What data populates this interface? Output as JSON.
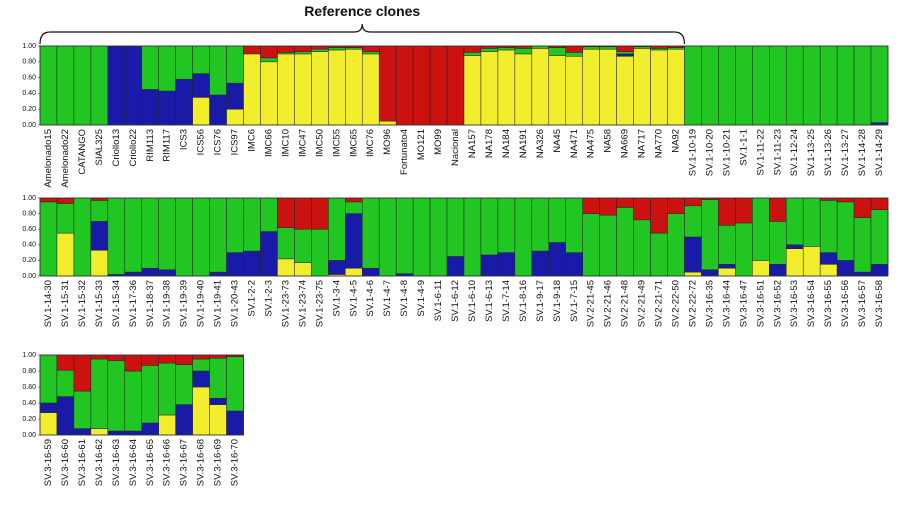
{
  "chart_data": [
    {
      "type": "stacked_bar",
      "annotation": "Reference clones",
      "annotation_span": [
        0,
        37
      ],
      "categories": [
        "Amelonado15",
        "Amelonado22",
        "CATANGO",
        "SIAL325",
        "Criollo13",
        "Criollo22",
        "RIM113",
        "RIM117",
        "ICS3",
        "ICS56",
        "ICS76",
        "ICS97",
        "IMC6",
        "IMC66",
        "IMC10",
        "IMC47",
        "IMC50",
        "IMC55",
        "IMC65",
        "IMC76",
        "MO96",
        "Fortunato4",
        "MO121",
        "MO99",
        "Nacional",
        "NA157",
        "NA178",
        "NA184",
        "NA191",
        "NA326",
        "NA45",
        "NA471",
        "NA475",
        "NA58",
        "NA669",
        "NA717",
        "NA770",
        "NA92",
        "SV.1-10-19",
        "SV.1-10-20",
        "SV.1-10-21",
        "SV.1-1-1",
        "SV.1-11-22",
        "SV.1-11-23",
        "SV.1-12-24",
        "SV.1-13-25",
        "SV.1-13-26",
        "SV.1-13-27",
        "SV.1-14-28",
        "SV.1-14-29"
      ],
      "series": [
        {
          "color": "#f2ee2e",
          "values": [
            0,
            0,
            0,
            0,
            0,
            0,
            0,
            0,
            0,
            0.35,
            0,
            0.2,
            0.9,
            0.8,
            0.9,
            0.9,
            0.93,
            0.95,
            0.96,
            0.9,
            0.05,
            0,
            0,
            0,
            0,
            0.88,
            0.93,
            0.95,
            0.9,
            0.97,
            0.88,
            0.87,
            0.96,
            0.96,
            0.87,
            0.97,
            0.95,
            0.96,
            0,
            0,
            0,
            0,
            0,
            0,
            0,
            0,
            0,
            0,
            0,
            0
          ]
        },
        {
          "color": "#1a1aa8",
          "values": [
            0,
            0,
            0,
            0,
            1,
            1,
            0.45,
            0.43,
            0.58,
            0.3,
            0.38,
            0.33,
            0,
            0,
            0,
            0,
            0,
            0,
            0,
            0,
            0,
            0,
            0,
            0,
            0,
            0,
            0,
            0,
            0,
            0,
            0,
            0,
            0,
            0,
            0.03,
            0,
            0,
            0,
            0,
            0,
            0,
            0,
            0,
            0,
            0,
            0,
            0,
            0,
            0,
            0.03
          ]
        },
        {
          "color": "#22c622",
          "values": [
            1,
            1,
            1,
            1,
            0,
            0,
            0.55,
            0.57,
            0.42,
            0.35,
            0.62,
            0.47,
            0,
            0.05,
            0.02,
            0.03,
            0.03,
            0.03,
            0.02,
            0.03,
            0,
            0,
            0,
            0,
            0,
            0.04,
            0.04,
            0.03,
            0.07,
            0.03,
            0.1,
            0.05,
            0.03,
            0.03,
            0.03,
            0.02,
            0.02,
            0.02,
            1,
            1,
            1,
            1,
            1,
            1,
            1,
            1,
            1,
            1,
            1,
            0.97
          ]
        },
        {
          "color": "#cc1111",
          "values": [
            0,
            0,
            0,
            0,
            0,
            0,
            0,
            0,
            0,
            0,
            0,
            0,
            0.1,
            0.15,
            0.08,
            0.07,
            0.04,
            0.02,
            0.02,
            0.07,
            0.95,
            1,
            1,
            1,
            1,
            0.08,
            0.03,
            0.02,
            0.03,
            0,
            0.02,
            0.08,
            0.01,
            0.01,
            0.07,
            0.01,
            0.03,
            0.02,
            0,
            0,
            0,
            0,
            0,
            0,
            0,
            0,
            0,
            0,
            0,
            0
          ]
        }
      ],
      "ylim": [
        0,
        1
      ],
      "yticks": [
        {
          "value": 0,
          "label": "0.00"
        },
        {
          "value": 0.2,
          "label": "0.20"
        },
        {
          "value": 0.4,
          "label": "0.40"
        },
        {
          "value": 0.6,
          "label": "0.60"
        },
        {
          "value": 0.8,
          "label": "0.80"
        },
        {
          "value": 1,
          "label": "1.00"
        }
      ]
    },
    {
      "type": "stacked_bar",
      "categories": [
        "SV.1-14-30",
        "SV.1-15-31",
        "SV.1-15-32",
        "SV.1-15-33",
        "SV.1-15-34",
        "SV.1-17-36",
        "SV.1-18-37",
        "SV.1-19-38",
        "SV.1-19-39",
        "SV.1-19-40",
        "SV.1-19-41",
        "SV.1-20-43",
        "SV.1-2-2",
        "SV.1-2-3",
        "SV.1-23-73",
        "SV.1-23-74",
        "SV.1-23-75",
        "SV.1-3-4",
        "SV.1-4-5",
        "SV.1-4-6",
        "SV.1-4-7",
        "SV.1-4-8",
        "SV.1-4-9",
        "SV.1-6-11",
        "SV.1-6-12",
        "SV.1-6-10",
        "SV.1-6-13",
        "SV.1-7-14",
        "SV.1-8-16",
        "SV.1-9-17",
        "SV.1-9-18",
        "SV.1-7-15",
        "SV.2-21-45",
        "SV.2-21-46",
        "SV.2-21-48",
        "SV.2-21-49",
        "SV.2-21-71",
        "SV.2-22-50",
        "SV.2-22-72",
        "SV.3-16-35",
        "SV.3-16-44",
        "SV.3-16-47",
        "SV.3-16-51",
        "SV.3-16-52",
        "SV.3-16-53",
        "SV.3-16-54",
        "SV.3-16-55",
        "SV.3-16-56",
        "SV.3-16-57",
        "SV.3-16-58"
      ],
      "series": [
        {
          "color": "#f2ee2e",
          "values": [
            0,
            0.55,
            0,
            0.33,
            0,
            0,
            0,
            0,
            0,
            0,
            0,
            0,
            0,
            0,
            0.22,
            0.17,
            0,
            0.02,
            0.1,
            0,
            0,
            0,
            0,
            0,
            0,
            0,
            0,
            0,
            0,
            0,
            0,
            0,
            0,
            0,
            0,
            0,
            0,
            0,
            0.05,
            0,
            0.1,
            0,
            0.2,
            0,
            0.35,
            0.38,
            0.15,
            0,
            0,
            0
          ]
        },
        {
          "color": "#1a1aa8",
          "values": [
            0,
            0,
            0,
            0.37,
            0.02,
            0.05,
            0.1,
            0.08,
            0,
            0,
            0.05,
            0.3,
            0.32,
            0.57,
            0,
            0,
            0,
            0.18,
            0.7,
            0.1,
            0,
            0.03,
            0,
            0,
            0.25,
            0,
            0.27,
            0.3,
            0,
            0.32,
            0.43,
            0.3,
            0,
            0,
            0,
            0,
            0,
            0,
            0.45,
            0.08,
            0.05,
            0,
            0,
            0.15,
            0.05,
            0,
            0.15,
            0.2,
            0.05,
            0.15
          ]
        },
        {
          "color": "#22c622",
          "values": [
            0.95,
            0.38,
            1,
            0.27,
            0.98,
            0.95,
            0.9,
            0.92,
            1,
            1,
            0.95,
            0.7,
            0.68,
            0.43,
            0.4,
            0.43,
            0.6,
            0.8,
            0.15,
            0.9,
            1,
            0.97,
            1,
            1,
            0.75,
            1,
            0.73,
            0.7,
            1,
            0.68,
            0.57,
            0.7,
            0.8,
            0.78,
            0.88,
            0.72,
            0.55,
            0.8,
            0.4,
            0.9,
            0.5,
            0.68,
            0.8,
            0.55,
            0.6,
            0.62,
            0.67,
            0.75,
            0.7,
            0.7
          ]
        },
        {
          "color": "#cc1111",
          "values": [
            0.05,
            0.07,
            0,
            0.03,
            0,
            0,
            0,
            0,
            0,
            0,
            0,
            0,
            0,
            0,
            0.38,
            0.4,
            0.4,
            0,
            0.05,
            0,
            0,
            0,
            0,
            0,
            0,
            0,
            0,
            0,
            0,
            0,
            0,
            0,
            0.2,
            0.22,
            0.12,
            0.28,
            0.45,
            0.2,
            0.1,
            0.02,
            0.35,
            0.32,
            0,
            0.3,
            0,
            0,
            0.03,
            0.05,
            0.25,
            0.15
          ]
        }
      ],
      "ylim": [
        0,
        1
      ],
      "yticks": [
        {
          "value": 0,
          "label": "0.00"
        },
        {
          "value": 0.2,
          "label": "0.20"
        },
        {
          "value": 0.4,
          "label": "0.40"
        },
        {
          "value": 0.6,
          "label": "0.60"
        },
        {
          "value": 0.8,
          "label": "0.80"
        },
        {
          "value": 1,
          "label": "1.00"
        }
      ]
    },
    {
      "type": "stacked_bar",
      "categories": [
        "SV.3-16-59",
        "SV.3-16-60",
        "SV.3-16-61",
        "SV.3-16-62",
        "SV.3-16-63",
        "SV.3-16-64",
        "SV.3-16-65",
        "SV.3-16-66",
        "SV.3-16-67",
        "SV.3-16-68",
        "SV.3-16-69",
        "SV.3-16-70"
      ],
      "series": [
        {
          "color": "#f2ee2e",
          "values": [
            0.28,
            0,
            0,
            0.08,
            0,
            0,
            0,
            0.25,
            0,
            0.6,
            0.38,
            0
          ]
        },
        {
          "color": "#1a1aa8",
          "values": [
            0.12,
            0.48,
            0.08,
            0,
            0.05,
            0.05,
            0.15,
            0,
            0.38,
            0.2,
            0.08,
            0.3
          ]
        },
        {
          "color": "#22c622",
          "values": [
            0.6,
            0.33,
            0.47,
            0.87,
            0.88,
            0.75,
            0.72,
            0.65,
            0.5,
            0.15,
            0.5,
            0.68
          ]
        },
        {
          "color": "#cc1111",
          "values": [
            0,
            0.19,
            0.45,
            0.05,
            0.07,
            0.2,
            0.13,
            0.1,
            0.12,
            0.05,
            0.04,
            0.02
          ]
        }
      ],
      "ylim": [
        0,
        1
      ],
      "yticks": [
        {
          "value": 0,
          "label": "0.00"
        },
        {
          "value": 0.2,
          "label": "0.20"
        },
        {
          "value": 0.4,
          "label": "0.40"
        },
        {
          "value": 0.6,
          "label": "0.60"
        },
        {
          "value": 0.8,
          "label": "0.80"
        },
        {
          "value": 1,
          "label": "1.00"
        }
      ]
    }
  ]
}
